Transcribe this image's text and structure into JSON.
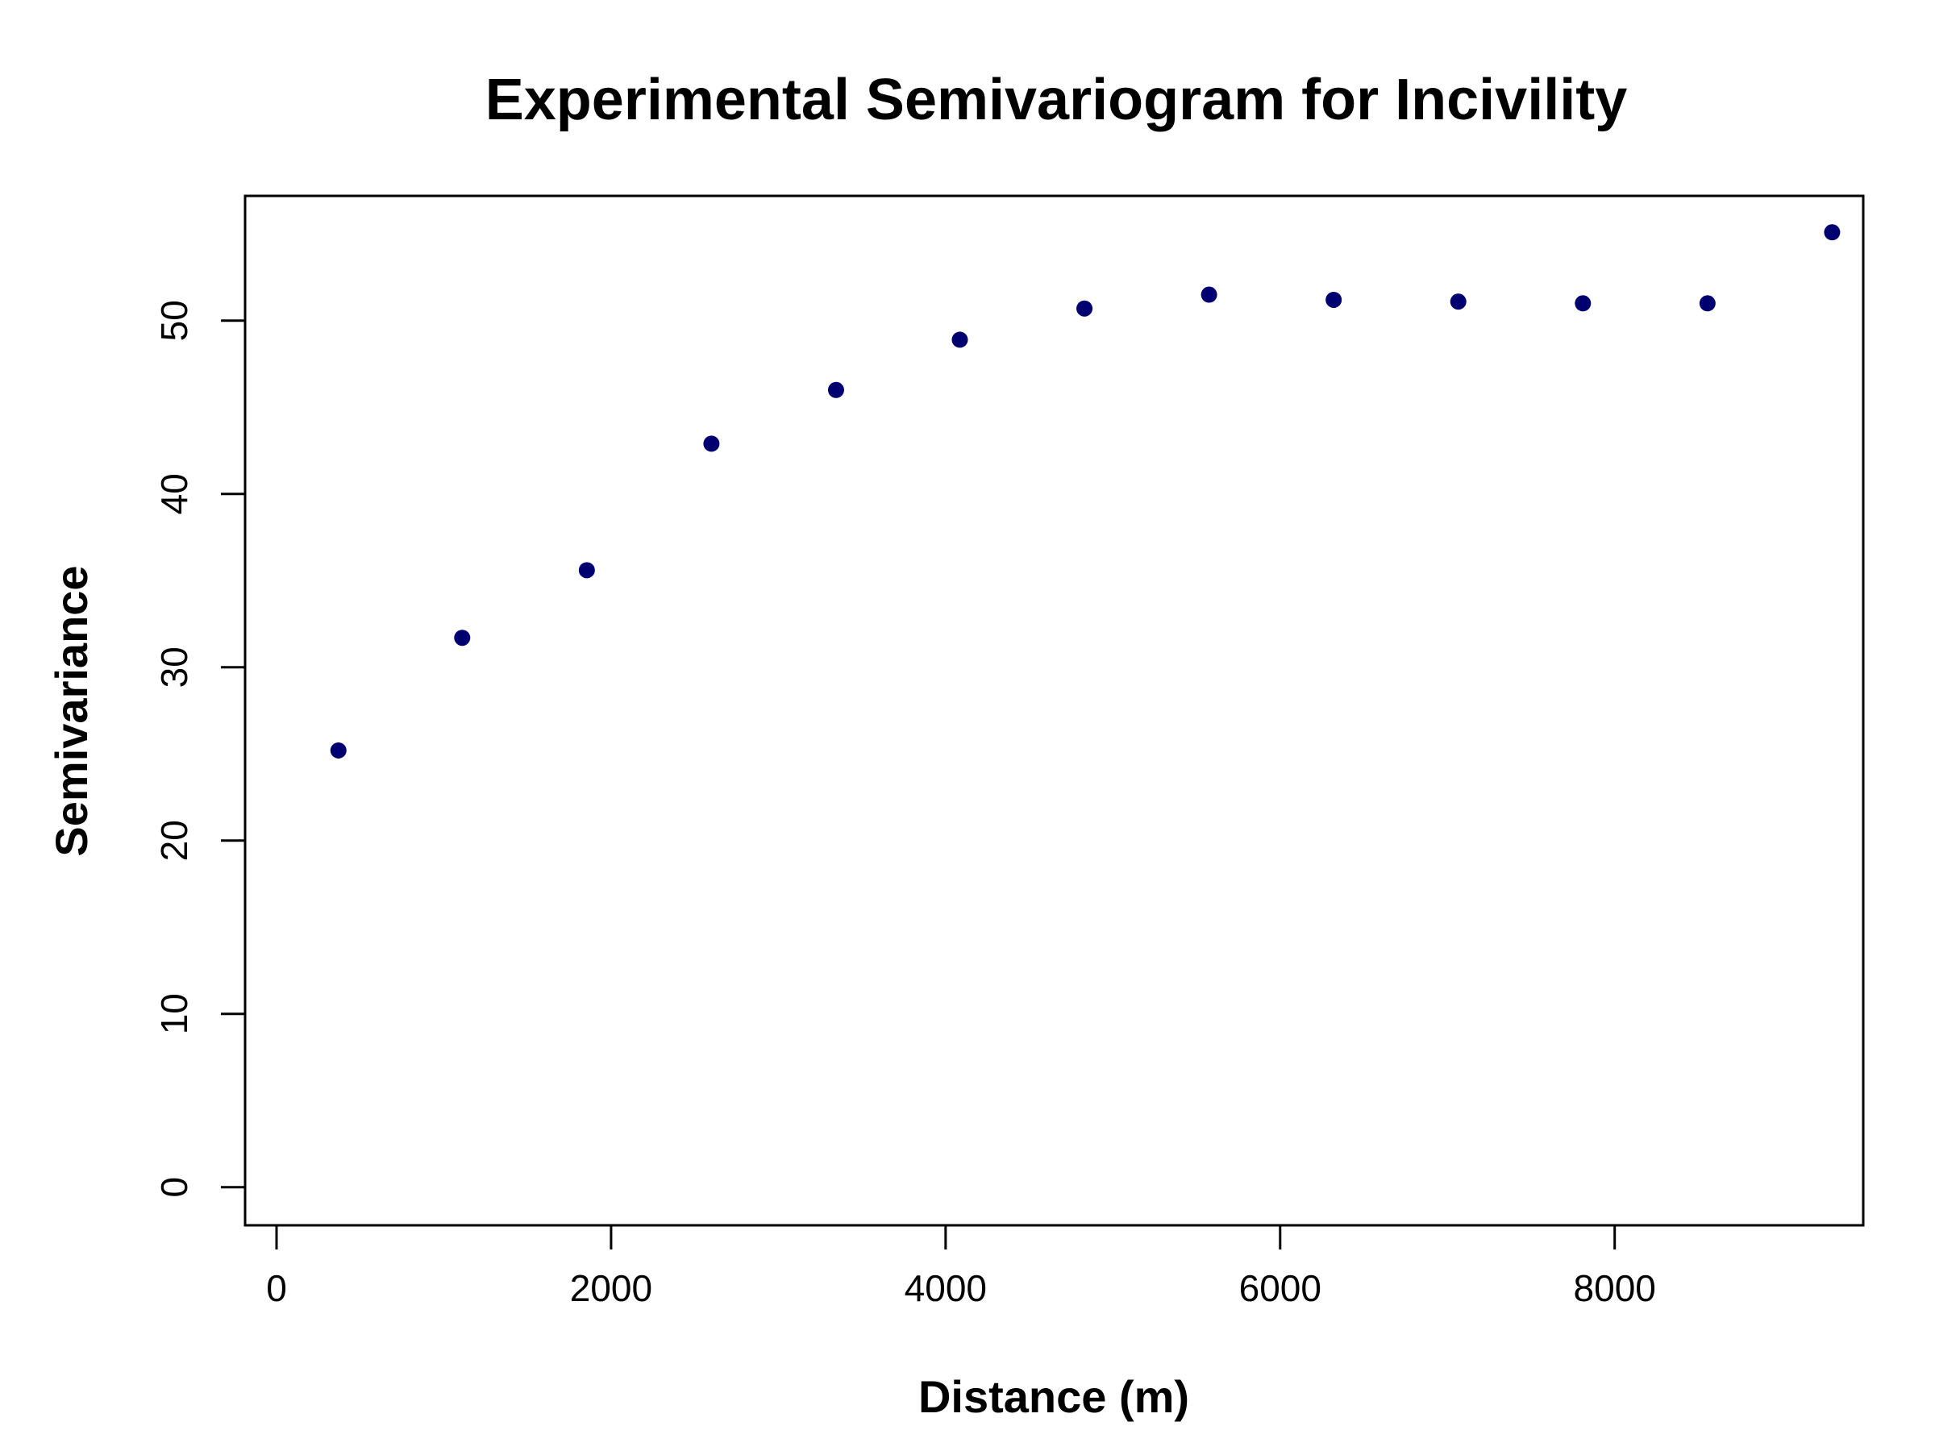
{
  "chart_data": {
    "type": "scatter",
    "title": "Experimental Semivariogram for Incivility",
    "xlabel": "Distance (m)",
    "ylabel": "Semivariance",
    "xlim": [
      -188,
      9486
    ],
    "ylim": [
      -2.2,
      57.2
    ],
    "xticks": [
      0,
      2000,
      4000,
      6000,
      8000
    ],
    "xtick_labels": [
      "0",
      "2000",
      "4000",
      "6000",
      "8000"
    ],
    "yticks": [
      0,
      10,
      20,
      30,
      40,
      50
    ],
    "ytick_labels": [
      "0",
      "10",
      "20",
      "30",
      "40",
      "50"
    ],
    "grid": false,
    "point_color": "#000070",
    "series": [
      {
        "x": [
          370,
          1110,
          1855,
          2600,
          3345,
          4085,
          4830,
          5575,
          6320,
          7065,
          7810,
          8555,
          9300
        ],
        "y": [
          25.2,
          31.7,
          35.6,
          42.9,
          46.0,
          48.9,
          50.7,
          51.5,
          51.2,
          51.1,
          51.0,
          51.0,
          55.1
        ]
      }
    ]
  }
}
